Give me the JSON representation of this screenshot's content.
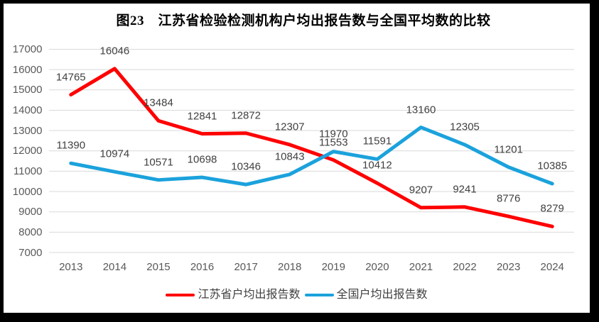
{
  "frame": {
    "background_color": "#000000",
    "chart_background_color": "#ffffff"
  },
  "chart_data": {
    "type": "line",
    "title": "图23　江苏省检验检测机构户均出报告数与全国平均数的比较",
    "categories": [
      "2013",
      "2014",
      "2015",
      "2016",
      "2017",
      "2018",
      "2019",
      "2020",
      "2021",
      "2022",
      "2023",
      "2024"
    ],
    "series": [
      {
        "name": "江苏省户均出报告数",
        "color": "#fe0000",
        "values": [
          14765,
          16046,
          13484,
          12841,
          12872,
          12307,
          11553,
          10412,
          9207,
          9241,
          8776,
          8279
        ]
      },
      {
        "name": "全国户均出报告数",
        "color": "#1ba2dc",
        "values": [
          11390,
          10974,
          10571,
          10698,
          10346,
          10843,
          11970,
          11591,
          13160,
          12305,
          11201,
          10385
        ]
      }
    ],
    "ylim": [
      7000,
      17000
    ],
    "ytick_step": 1000,
    "yticks": [
      17000,
      16000,
      15000,
      14000,
      13000,
      12000,
      11000,
      10000,
      9000,
      8000,
      7000
    ],
    "grid": true,
    "gridline_color": "#d9d9d9",
    "axis_text_color": "#595959",
    "data_label_color": "#404040",
    "data_labels": true,
    "legend_position": "bottom",
    "xlabel": "",
    "ylabel": ""
  }
}
